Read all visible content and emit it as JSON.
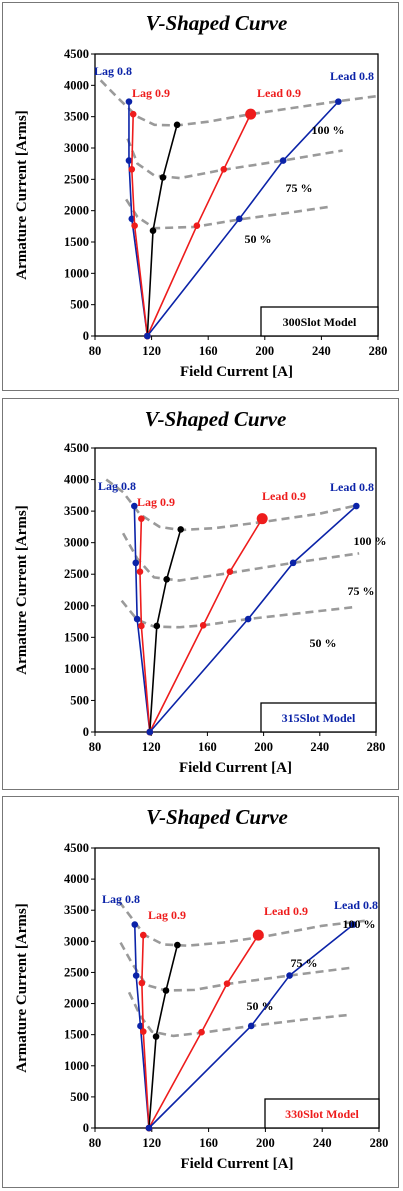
{
  "colors": {
    "lag08": "#0b23a8",
    "lag09": "#ee1c1c",
    "unity": "#000000",
    "curve": "#9a9a9a"
  },
  "chart_data": [
    {
      "type": "line",
      "title": "V-Shaped Curve",
      "xlabel": "Field Current [A]",
      "ylabel": "Armature  Current  [Arms]",
      "xlim": [
        80,
        280
      ],
      "ylim": [
        0,
        4500
      ],
      "xticks": [
        "80",
        "120",
        "160",
        "200",
        "240",
        "280"
      ],
      "yticks": [
        "0",
        "500",
        "1000",
        "1500",
        "2000",
        "2500",
        "3000",
        "3500",
        "4000",
        "4500"
      ],
      "model_label": "300Slot Model",
      "model_color": "#000000",
      "grid": false,
      "series": [
        {
          "name": "Lag 0.8",
          "color": "#0b23a8",
          "x": [
            117,
            106,
            104,
            104
          ],
          "y": [
            0,
            1870,
            2800,
            3740
          ]
        },
        {
          "name": "Lag 0.9",
          "color": "#ee1c1c",
          "x": [
            117,
            108,
            106,
            107
          ],
          "y": [
            0,
            1760,
            2660,
            3540
          ]
        },
        {
          "name": "",
          "color": "#000000",
          "x": [
            117,
            121,
            128,
            138
          ],
          "y": [
            0,
            1680,
            2530,
            3370
          ]
        },
        {
          "name": "Lead 0.9",
          "color": "#ee1c1c",
          "x": [
            117,
            152,
            171,
            190
          ],
          "y": [
            0,
            1760,
            2660,
            3540
          ]
        },
        {
          "name": "Lead 0.8",
          "color": "#0b23a8",
          "x": [
            117,
            182,
            213,
            252
          ],
          "y": [
            0,
            1870,
            2800,
            3740
          ]
        }
      ],
      "load_curves": [
        {
          "label": "100 %",
          "x": [
            84,
            97,
            110,
            122,
            138,
            160,
            190,
            220,
            250,
            280
          ],
          "y": [
            4080,
            3780,
            3500,
            3370,
            3360,
            3420,
            3540,
            3640,
            3740,
            3830
          ]
        },
        {
          "label": "75 %",
          "x": [
            103,
            110,
            122,
            140,
            170,
            213,
            255
          ],
          "y": [
            3150,
            2750,
            2560,
            2520,
            2650,
            2800,
            2960
          ]
        },
        {
          "label": "50 %",
          "x": [
            102,
            110,
            122,
            150,
            182,
            215,
            245
          ],
          "y": [
            2180,
            1900,
            1720,
            1740,
            1860,
            1960,
            2060
          ]
        }
      ],
      "labels": [
        {
          "text": "Lag 0.8",
          "role": "lag08"
        },
        {
          "text": "Lag 0.9",
          "role": "lag09"
        },
        {
          "text": "Lead 0.9",
          "role": "lead09"
        },
        {
          "text": "Lead 0.8",
          "role": "lead08"
        },
        {
          "text": "100 %",
          "role": "p100"
        },
        {
          "text": "75 %",
          "role": "p75"
        },
        {
          "text": "50 %",
          "role": "p50"
        }
      ]
    },
    {
      "type": "line",
      "title": "V-Shaped Curve",
      "xlabel": "Field Current [A]",
      "ylabel": "Armature  Current  [Arms]",
      "xlim": [
        80,
        280
      ],
      "ylim": [
        0,
        4500
      ],
      "xticks": [
        "80",
        "120",
        "160",
        "200",
        "240",
        "280"
      ],
      "yticks": [
        "0",
        "500",
        "1000",
        "1500",
        "2000",
        "2500",
        "3000",
        "3500",
        "4000",
        "4500"
      ],
      "model_label": "315Slot Model",
      "model_color": "#0b23a8",
      "grid": false,
      "series": [
        {
          "name": "Lag 0.8",
          "color": "#0b23a8",
          "x": [
            119,
            110,
            109,
            108
          ],
          "y": [
            0,
            1790,
            2680,
            3580
          ]
        },
        {
          "name": "Lag 0.9",
          "color": "#ee1c1c",
          "x": [
            119,
            113,
            112,
            113
          ],
          "y": [
            0,
            1680,
            2540,
            3380
          ]
        },
        {
          "name": "",
          "color": "#000000",
          "x": [
            119,
            124,
            131,
            141
          ],
          "y": [
            0,
            1680,
            2420,
            3210
          ]
        },
        {
          "name": "Lead 0.9",
          "color": "#ee1c1c",
          "x": [
            119,
            157,
            176,
            199
          ],
          "y": [
            0,
            1690,
            2540,
            3380
          ]
        },
        {
          "name": "Lead 0.8",
          "color": "#0b23a8",
          "x": [
            119,
            189,
            221,
            266
          ],
          "y": [
            0,
            1790,
            2680,
            3580
          ]
        }
      ],
      "load_curves": [
        {
          "label": "100 %",
          "x": [
            88,
            100,
            112,
            126,
            141,
            165,
            200,
            240,
            268
          ],
          "y": [
            4000,
            3800,
            3450,
            3250,
            3200,
            3230,
            3330,
            3460,
            3600
          ]
        },
        {
          "label": "75 %",
          "x": [
            100,
            110,
            122,
            140,
            176,
            221,
            268
          ],
          "y": [
            3150,
            2750,
            2450,
            2400,
            2520,
            2680,
            2830
          ]
        },
        {
          "label": "50 %",
          "x": [
            99,
            110,
            122,
            140,
            157,
            189,
            225,
            265
          ],
          "y": [
            2080,
            1780,
            1670,
            1660,
            1690,
            1790,
            1880,
            1980
          ]
        }
      ],
      "labels": [
        {
          "text": "Lag 0.8",
          "role": "lag08"
        },
        {
          "text": "Lag 0.9",
          "role": "lag09"
        },
        {
          "text": "Lead 0.9",
          "role": "lead09"
        },
        {
          "text": "Lead 0.8",
          "role": "lead08"
        },
        {
          "text": "100 %",
          "role": "p100"
        },
        {
          "text": "75 %",
          "role": "p75"
        },
        {
          "text": "50 %",
          "role": "p50"
        }
      ]
    },
    {
      "type": "line",
      "title": "V-Shaped Curve",
      "xlabel": "Field Current [A]",
      "ylabel": "Armature  Current  [Arms]",
      "xlim": [
        80,
        280
      ],
      "ylim": [
        0,
        4500
      ],
      "xticks": [
        "80",
        "120",
        "160",
        "200",
        "240",
        "280"
      ],
      "yticks": [
        "0",
        "500",
        "1000",
        "1500",
        "2000",
        "2500",
        "3000",
        "3500",
        "4000",
        "4500"
      ],
      "model_label": "330Slot Model",
      "model_color": "#ee1c1c",
      "grid": false,
      "series": [
        {
          "name": "Lag 0.8",
          "color": "#0b23a8",
          "x": [
            118,
            112,
            109,
            108
          ],
          "y": [
            0,
            1640,
            2450,
            3270
          ]
        },
        {
          "name": "Lag 0.9",
          "color": "#ee1c1c",
          "x": [
            118,
            114,
            113,
            114
          ],
          "y": [
            0,
            1550,
            2330,
            3100
          ]
        },
        {
          "name": "",
          "color": "#000000",
          "x": [
            118,
            123,
            130,
            138
          ],
          "y": [
            0,
            1470,
            2210,
            2940
          ]
        },
        {
          "name": "Lead 0.9",
          "color": "#ee1c1c",
          "x": [
            118,
            155,
            173,
            195
          ],
          "y": [
            0,
            1540,
            2320,
            3100
          ]
        },
        {
          "name": "Lead 0.8",
          "color": "#0b23a8",
          "x": [
            118,
            190,
            217,
            262
          ],
          "y": [
            0,
            1640,
            2450,
            3270
          ]
        }
      ],
      "load_curves": [
        {
          "label": "100 %",
          "x": [
            97,
            105,
            115,
            128,
            145,
            170,
            200,
            240,
            270
          ],
          "y": [
            3640,
            3400,
            3100,
            2950,
            2930,
            2980,
            3080,
            3250,
            3330
          ]
        },
        {
          "label": "75 %",
          "x": [
            98,
            106,
            116,
            130,
            150,
            175,
            217,
            262
          ],
          "y": [
            2980,
            2650,
            2300,
            2210,
            2220,
            2320,
            2450,
            2580
          ]
        },
        {
          "label": "50 %",
          "x": [
            104,
            112,
            120,
            135,
            155,
            190,
            230,
            260
          ],
          "y": [
            2180,
            1800,
            1550,
            1480,
            1530,
            1640,
            1750,
            1820
          ]
        }
      ],
      "labels": [
        {
          "text": "Lag 0.8",
          "role": "lag08"
        },
        {
          "text": "Lag 0.9",
          "role": "lag09"
        },
        {
          "text": "Lead 0.9",
          "role": "lead09"
        },
        {
          "text": "Lead 0.8",
          "role": "lead08"
        },
        {
          "text": "100 %",
          "role": "p100"
        },
        {
          "text": "75 %",
          "role": "p75"
        },
        {
          "text": "50 %",
          "role": "p50"
        }
      ]
    }
  ]
}
